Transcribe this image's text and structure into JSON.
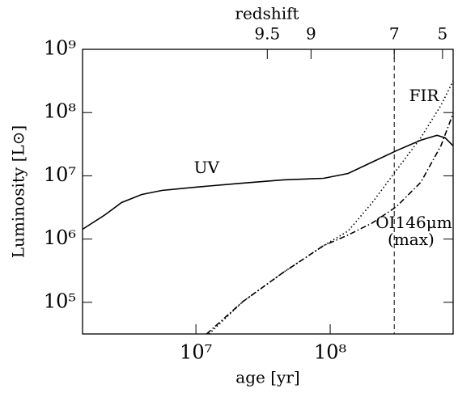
{
  "chart_data": {
    "type": "line",
    "xlabel": "age [yr]",
    "ylabel": "Luminosity [L⊙]",
    "x2label": "redshift",
    "xscale": "log",
    "yscale": "log",
    "xlim": [
      1430000,
      824000000
    ],
    "ylim": [
      31600,
      1000000000
    ],
    "xticks": [
      {
        "value": 10000000,
        "label": "10⁷"
      },
      {
        "value": 100000000,
        "label": "10⁸"
      }
    ],
    "yticks": [
      {
        "value": 100000,
        "label": "10⁵"
      },
      {
        "value": 1000000,
        "label": "10⁶"
      },
      {
        "value": 10000000,
        "label": "10⁷"
      },
      {
        "value": 100000000,
        "label": "10⁸"
      },
      {
        "value": 1000000000,
        "label": "10⁹"
      }
    ],
    "x2ticks": [
      {
        "value": 34000000,
        "label": "9.5"
      },
      {
        "value": 72000000,
        "label": "9"
      },
      {
        "value": 300000000,
        "label": "7"
      },
      {
        "value": 687000000,
        "label": "5"
      }
    ],
    "vline": 300000000,
    "series": [
      {
        "name": "UV",
        "color": "#000000",
        "dash": "none",
        "x": [
          1430000,
          2110000,
          2790000,
          3950000,
          5580000,
          10000000,
          22400000,
          44800000,
          89500000,
          136000000,
          206000000,
          312000000,
          473000000,
          624000000,
          717000000,
          824000000
        ],
        "values": [
          1430000,
          2430000,
          3780000,
          5070000,
          5870000,
          6620000,
          7670000,
          8630000,
          9150000,
          10900000,
          16500000,
          25000000,
          36600000,
          43700000,
          40100000,
          29800000
        ]
      },
      {
        "name": "FIR",
        "color": "#000000",
        "dash": "1.5 3",
        "x": [
          12500000,
          22400000,
          44800000,
          89500000,
          136000000,
          206000000,
          312000000,
          473000000,
          668000000,
          824000000
        ],
        "values": [
          31600,
          103000,
          298000,
          789000,
          1340000,
          3780000,
          12300000,
          40000000,
          130000000,
          316000000
        ]
      },
      {
        "name": "OI146μm",
        "color": "#000000",
        "dash": "7 3 1.5 3",
        "x": [
          12000000,
          22400000,
          44800000,
          89500000,
          136000000,
          206000000,
          312000000,
          473000000,
          668000000,
          824000000
        ],
        "values": [
          31600,
          103000,
          298000,
          789000,
          1160000,
          1800000,
          3260000,
          7890000,
          29800000,
          97000000
        ]
      }
    ],
    "annotations": [
      {
        "text": "UV",
        "x": 12000000,
        "y": 13000000
      },
      {
        "text": "FIR",
        "x": 500000000,
        "y": 180000000
      },
      {
        "text": "OI146μm",
        "x": 420000000,
        "y": 1750000
      },
      {
        "text": "(max)",
        "x": 400000000,
        "y": 950000
      }
    ]
  }
}
